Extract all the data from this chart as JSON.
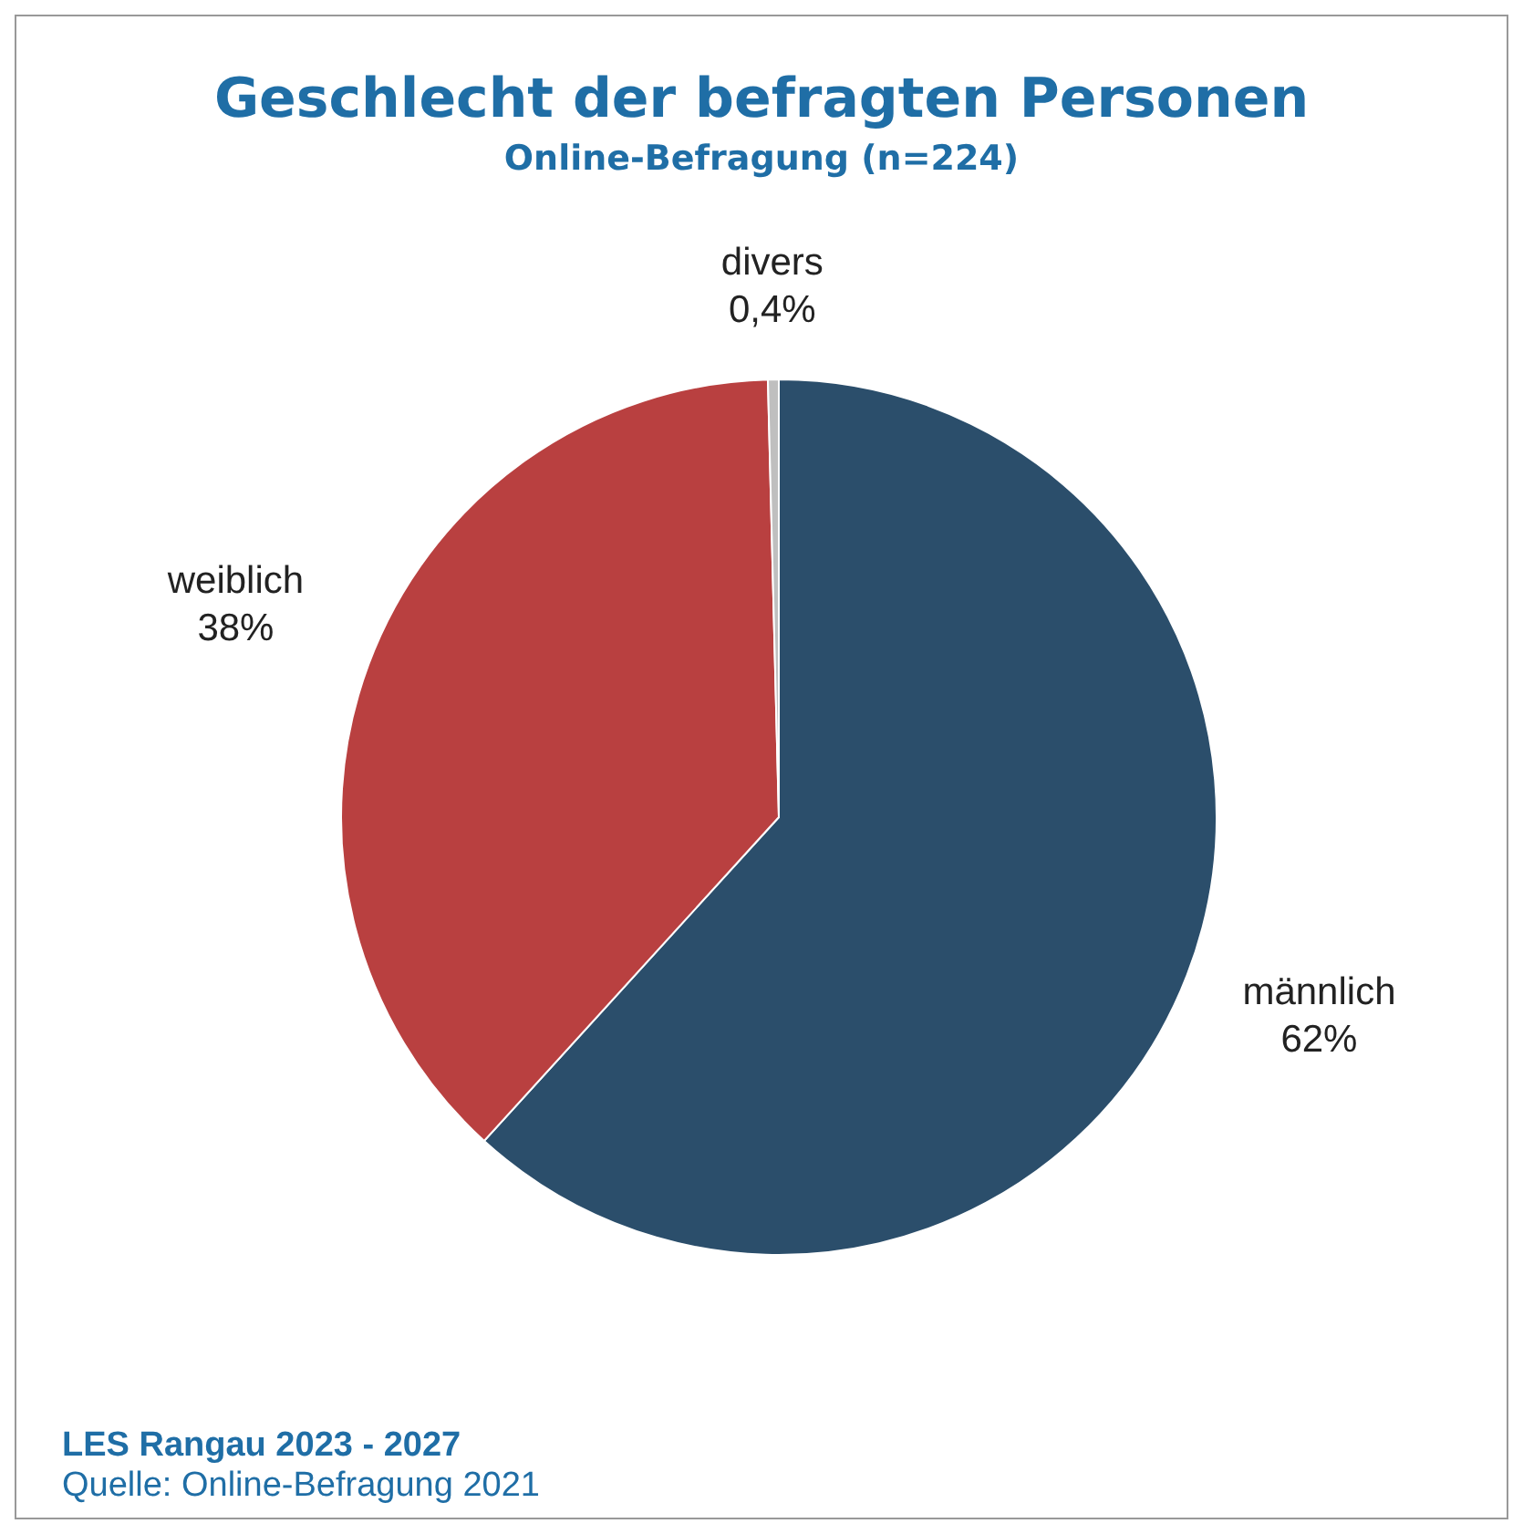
{
  "chart_data": {
    "type": "pie",
    "title": "Geschlecht der befragten Personen",
    "subtitle": "Online-Befragung (n=224)",
    "categories": [
      "männlich",
      "weiblich",
      "divers"
    ],
    "values": [
      62,
      38,
      0.4
    ],
    "value_labels": [
      "62%",
      "38%",
      "0,4%"
    ],
    "colors": [
      "#2b4e6b",
      "#b94040",
      "#bfbfbf"
    ],
    "legend": false,
    "annotations": [
      "LES Rangau 2023 - 2027",
      "Quelle: Online-Befragung 2021"
    ]
  }
}
